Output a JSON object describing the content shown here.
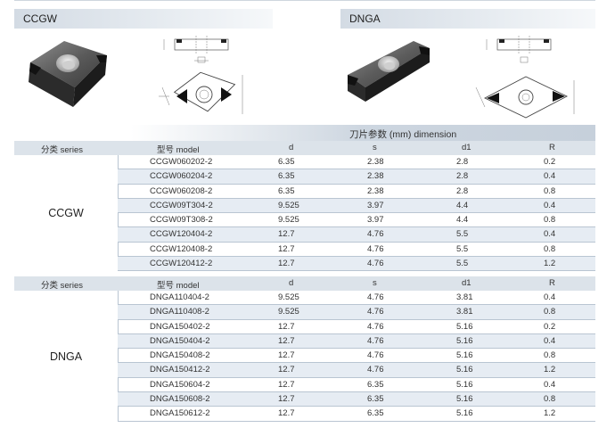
{
  "left_title": "CCGW",
  "right_title": "DNGA",
  "dimension_header": "刀片参数 (mm) dimension",
  "columns": {
    "series": "分类 series",
    "model": "型号 model",
    "d": "d",
    "s": "s",
    "d1": "d1",
    "r": "R"
  },
  "ccgw": {
    "category": "CCGW",
    "rows": [
      {
        "model": "CCGW060202-2",
        "d": "6.35",
        "s": "2.38",
        "d1": "2.8",
        "r": "0.2"
      },
      {
        "model": "CCGW060204-2",
        "d": "6.35",
        "s": "2.38",
        "d1": "2.8",
        "r": "0.4"
      },
      {
        "model": "CCGW060208-2",
        "d": "6.35",
        "s": "2.38",
        "d1": "2.8",
        "r": "0.8"
      },
      {
        "model": "CCGW09T304-2",
        "d": "9.525",
        "s": "3.97",
        "d1": "4.4",
        "r": "0.4"
      },
      {
        "model": "CCGW09T308-2",
        "d": "9.525",
        "s": "3.97",
        "d1": "4.4",
        "r": "0.8"
      },
      {
        "model": "CCGW120404-2",
        "d": "12.7",
        "s": "4.76",
        "d1": "5.5",
        "r": "0.4"
      },
      {
        "model": "CCGW120408-2",
        "d": "12.7",
        "s": "4.76",
        "d1": "5.5",
        "r": "0.8"
      },
      {
        "model": "CCGW120412-2",
        "d": "12.7",
        "s": "4.76",
        "d1": "5.5",
        "r": "1.2"
      }
    ]
  },
  "dnga": {
    "category": "DNGA",
    "rows": [
      {
        "model": "DNGA110404-2",
        "d": "9.525",
        "s": "4.76",
        "d1": "3.81",
        "r": "0.4"
      },
      {
        "model": "DNGA110408-2",
        "d": "9.525",
        "s": "4.76",
        "d1": "3.81",
        "r": "0.8"
      },
      {
        "model": "DNGA150402-2",
        "d": "12.7",
        "s": "4.76",
        "d1": "5.16",
        "r": "0.2"
      },
      {
        "model": "DNGA150404-2",
        "d": "12.7",
        "s": "4.76",
        "d1": "5.16",
        "r": "0.4"
      },
      {
        "model": "DNGA150408-2",
        "d": "12.7",
        "s": "4.76",
        "d1": "5.16",
        "r": "0.8"
      },
      {
        "model": "DNGA150412-2",
        "d": "12.7",
        "s": "4.76",
        "d1": "5.16",
        "r": "1.2"
      },
      {
        "model": "DNGA150604-2",
        "d": "12.7",
        "s": "6.35",
        "d1": "5.16",
        "r": "0.4"
      },
      {
        "model": "DNGA150608-2",
        "d": "12.7",
        "s": "6.35",
        "d1": "5.16",
        "r": "0.8"
      },
      {
        "model": "DNGA150612-2",
        "d": "12.7",
        "s": "6.35",
        "d1": "5.16",
        "r": "1.2"
      }
    ]
  }
}
